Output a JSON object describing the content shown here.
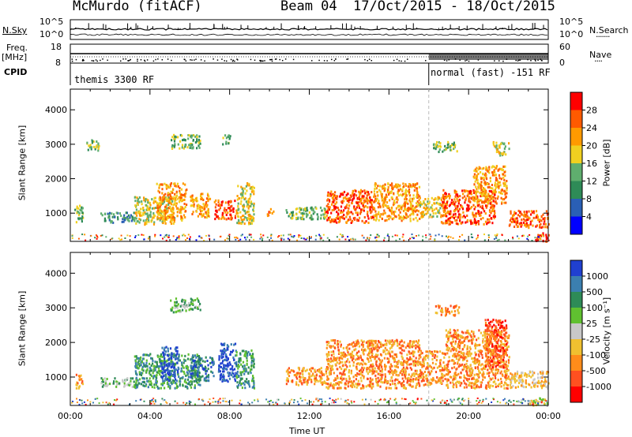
{
  "header": {
    "station": "McMurdo (fitACF)",
    "beam": "Beam 04",
    "date_range": "17/Oct/2015 - 18/Oct/2015"
  },
  "top_panel": {
    "left_label": "N.Sky",
    "right_label": "N.Search",
    "right_dots": "·······",
    "left_ticks": [
      "10^5",
      "10^0"
    ],
    "right_ticks": [
      "10^5",
      "10^0"
    ]
  },
  "freq_panel": {
    "left_label": "Freq.",
    "left_unit": "[MHz]",
    "right_label": "Nave",
    "right_dots": "····",
    "left_ticks": [
      "18",
      "8"
    ],
    "right_ticks": [
      "60",
      "0"
    ]
  },
  "cpid": {
    "label": "CPID",
    "programs": [
      {
        "name": "themis 3300 RF",
        "start_hour": 0,
        "end_hour": 18.0
      },
      {
        "name": "normal (fast) -151 RF",
        "start_hour": 18.0,
        "end_hour": 24
      }
    ]
  },
  "colors": {
    "power": [
      "#0000ff",
      "#2a5fb5",
      "#2e8b57",
      "#5fae6e",
      "#f0d020",
      "#ff9a00",
      "#ff5a00",
      "#ff0000"
    ],
    "velocity": [
      "#2040d0",
      "#3b7fb0",
      "#2e8b57",
      "#60c030",
      "#c8c8c8",
      "#f0c030",
      "#ff8c1a",
      "#ff5020",
      "#ff0000"
    ]
  },
  "chart_data": [
    {
      "type": "heatmap",
      "ylabel": "Slant Range [km]",
      "ylim": [
        180,
        4600
      ],
      "yticks": [
        1000,
        2000,
        3000,
        4000
      ],
      "xlim": [
        0,
        24
      ],
      "colorbar": {
        "label": "Power [dB]",
        "range": [
          0,
          32
        ],
        "ticks": [
          "28",
          "24",
          "20",
          "16",
          "12",
          "8",
          "4"
        ]
      },
      "echo_regions": [
        {
          "t0": 0.2,
          "t1": 0.6,
          "r0": 700,
          "r1": 1300,
          "level": 3
        },
        {
          "t0": 0.8,
          "t1": 1.5,
          "r0": 2850,
          "r1": 3150,
          "level": 3
        },
        {
          "t0": 1.5,
          "t1": 3.2,
          "r0": 750,
          "r1": 1050,
          "level": 2
        },
        {
          "t0": 3.2,
          "t1": 5.2,
          "r0": 700,
          "r1": 1500,
          "level": 4
        },
        {
          "t0": 4.3,
          "t1": 5.8,
          "r0": 800,
          "r1": 1900,
          "level": 5
        },
        {
          "t0": 5.0,
          "t1": 6.5,
          "r0": 2900,
          "r1": 3300,
          "level": 3
        },
        {
          "t0": 6.0,
          "t1": 7.0,
          "r0": 900,
          "r1": 1600,
          "level": 5
        },
        {
          "t0": 7.2,
          "t1": 8.3,
          "r0": 850,
          "r1": 1400,
          "level": 6
        },
        {
          "t0": 7.6,
          "t1": 8.0,
          "r0": 3000,
          "r1": 3300,
          "level": 3
        },
        {
          "t0": 8.3,
          "t1": 9.2,
          "r0": 700,
          "r1": 1900,
          "level": 4
        },
        {
          "t0": 9.8,
          "t1": 10.2,
          "r0": 950,
          "r1": 1150,
          "level": 6
        },
        {
          "t0": 10.8,
          "t1": 12.8,
          "r0": 850,
          "r1": 1200,
          "level": 3
        },
        {
          "t0": 12.8,
          "t1": 15.2,
          "r0": 750,
          "r1": 1700,
          "level": 6
        },
        {
          "t0": 15.2,
          "t1": 17.5,
          "r0": 800,
          "r1": 1900,
          "level": 5
        },
        {
          "t0": 17.5,
          "t1": 18.6,
          "r0": 900,
          "r1": 1500,
          "level": 4
        },
        {
          "t0": 18.2,
          "t1": 19.4,
          "r0": 2800,
          "r1": 3100,
          "level": 3
        },
        {
          "t0": 18.6,
          "t1": 21.3,
          "r0": 700,
          "r1": 1700,
          "level": 6
        },
        {
          "t0": 20.2,
          "t1": 21.9,
          "r0": 1300,
          "r1": 2400,
          "level": 5
        },
        {
          "t0": 21.2,
          "t1": 22.0,
          "r0": 2700,
          "r1": 3100,
          "level": 4
        },
        {
          "t0": 22.0,
          "t1": 24.0,
          "r0": 600,
          "r1": 1100,
          "level": 6
        },
        {
          "t0": 23.3,
          "t1": 24.0,
          "r0": 200,
          "r1": 450,
          "level": 7
        }
      ]
    },
    {
      "type": "heatmap",
      "ylabel": "Slant Range [km]",
      "ylim": [
        180,
        4600
      ],
      "yticks": [
        1000,
        2000,
        3000,
        4000
      ],
      "xlim": [
        0,
        24
      ],
      "xlabel": "Time UT",
      "xticks": [
        "00:00",
        "04:00",
        "08:00",
        "12:00",
        "16:00",
        "20:00",
        "00:00"
      ],
      "colorbar": {
        "label": "Velocity [m s⁻¹]",
        "ticks": [
          "1000",
          "500",
          "100",
          "25",
          "-25",
          "-100",
          "-500",
          "-1000"
        ]
      },
      "echo_regions": [
        {
          "t0": 0.2,
          "t1": 0.6,
          "r0": 700,
          "r1": 1100,
          "level": 6
        },
        {
          "t0": 1.5,
          "t1": 3.2,
          "r0": 750,
          "r1": 1000,
          "level": 3
        },
        {
          "t0": 3.2,
          "t1": 6.5,
          "r0": 700,
          "r1": 1700,
          "level": 2
        },
        {
          "t0": 4.5,
          "t1": 5.4,
          "r0": 900,
          "r1": 1900,
          "level": 0
        },
        {
          "t0": 5.0,
          "t1": 6.5,
          "r0": 2900,
          "r1": 3300,
          "level": 3
        },
        {
          "t0": 6.0,
          "t1": 7.2,
          "r0": 900,
          "r1": 1600,
          "level": 1
        },
        {
          "t0": 7.4,
          "t1": 8.3,
          "r0": 900,
          "r1": 2000,
          "level": 0
        },
        {
          "t0": 8.3,
          "t1": 9.2,
          "r0": 700,
          "r1": 1800,
          "level": 2
        },
        {
          "t0": 10.8,
          "t1": 12.8,
          "r0": 800,
          "r1": 1300,
          "level": 6
        },
        {
          "t0": 12.8,
          "t1": 17.5,
          "r0": 700,
          "r1": 2100,
          "level": 6
        },
        {
          "t0": 17.5,
          "t1": 18.8,
          "r0": 800,
          "r1": 1800,
          "level": 6
        },
        {
          "t0": 18.3,
          "t1": 19.5,
          "r0": 2800,
          "r1": 3100,
          "level": 6
        },
        {
          "t0": 18.8,
          "t1": 22.0,
          "r0": 700,
          "r1": 2400,
          "level": 6
        },
        {
          "t0": 20.8,
          "t1": 21.9,
          "r0": 1300,
          "r1": 2700,
          "level": 7
        },
        {
          "t0": 22.0,
          "t1": 24.0,
          "r0": 700,
          "r1": 1200,
          "level": 5
        },
        {
          "t0": 23.0,
          "t1": 24.0,
          "r0": 200,
          "r1": 450,
          "level": 4
        }
      ]
    }
  ]
}
